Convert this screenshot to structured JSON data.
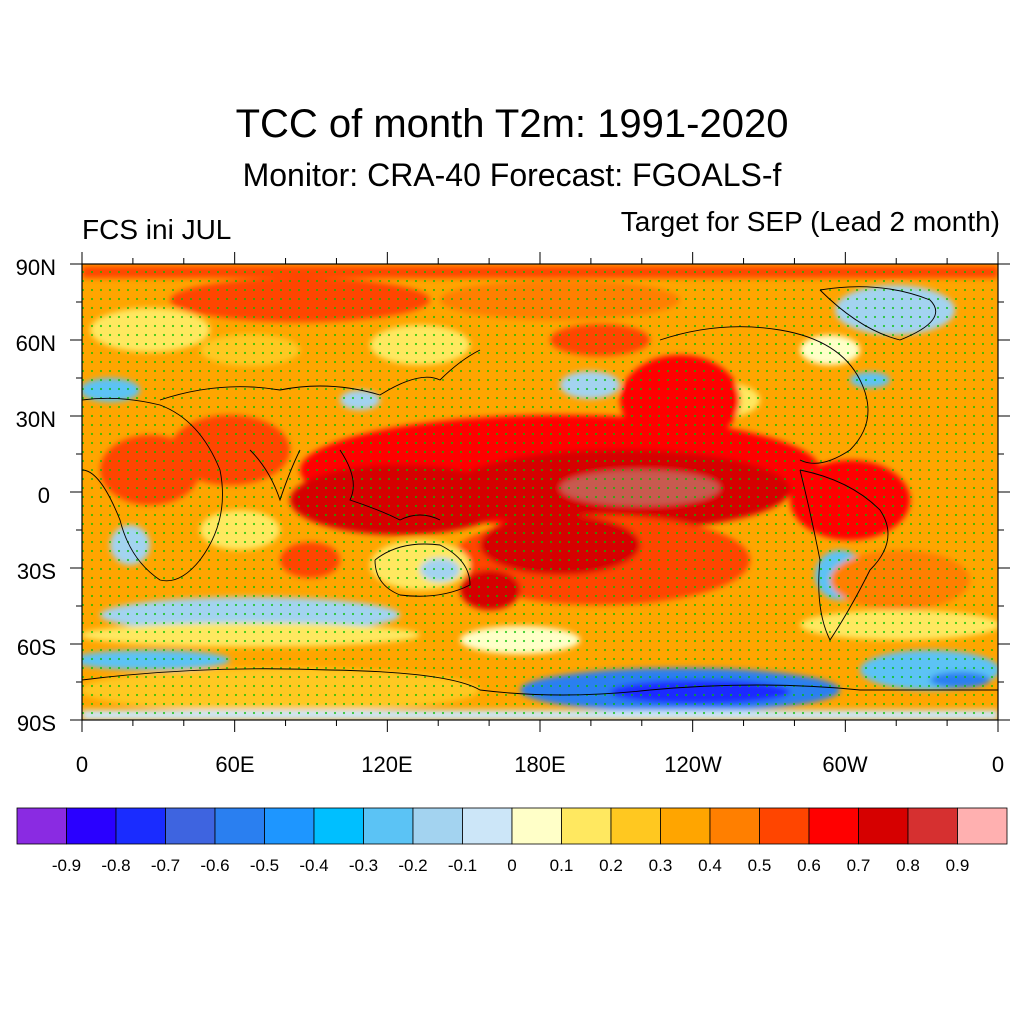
{
  "figure": {
    "title": "TCC of month T2m: 1991-2020",
    "subtitle": "Monitor: CRA-40   Forecast: FGOALS-f",
    "left_label": "FCS ini JUL",
    "right_label": "Target for SEP (Lead 2 month)"
  },
  "map": {
    "projection": "cylindrical-equidistant",
    "lon_range": [
      0,
      360
    ],
    "lat_range": [
      -90,
      90
    ],
    "lat_ticks": [
      "90N",
      "60N",
      "30N",
      "0",
      "30S",
      "60S",
      "90S"
    ],
    "lon_ticks": [
      "0",
      "60E",
      "120E",
      "180E",
      "120W",
      "60W",
      "0"
    ],
    "stipple_color": "#00c000",
    "coastline_color": "#000000",
    "field_description_visible": "shaded correlation field with significance stippling"
  },
  "colorbar": {
    "colors": [
      "#8a2be2",
      "#2a00ff",
      "#1a2cff",
      "#3e64e0",
      "#2a7ff0",
      "#1e96ff",
      "#00bfff",
      "#5bc3f5",
      "#a3d3f0",
      "#cce6f8",
      "#ffffc8",
      "#ffe860",
      "#ffc820",
      "#ffa500",
      "#ff7f00",
      "#ff4500",
      "#ff0000",
      "#d60000",
      "#d63030",
      "#ffb0b0"
    ],
    "labels": [
      "-0.9",
      "-0.8",
      "-0.7",
      "-0.6",
      "-0.5",
      "-0.4",
      "-0.3",
      "-0.2",
      "-0.1",
      "0",
      "0.1",
      "0.2",
      "0.3",
      "0.4",
      "0.5",
      "0.6",
      "0.7",
      "0.8",
      "0.9"
    ]
  }
}
